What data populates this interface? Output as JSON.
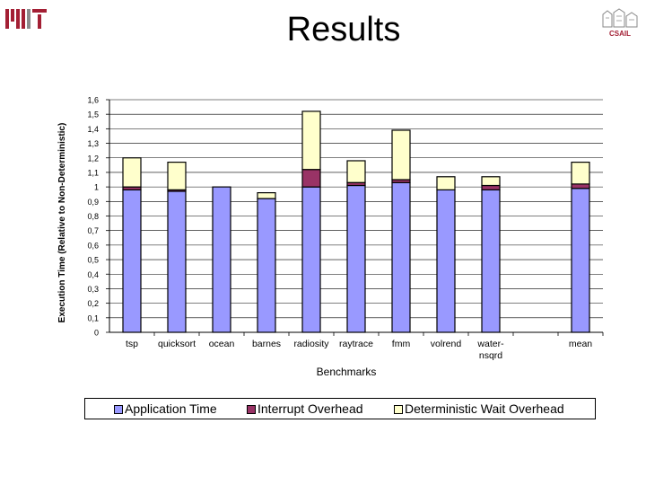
{
  "slide": {
    "title": "Results",
    "logo_left_text": "MIT",
    "logo_right_text": "CSAIL"
  },
  "chart_data": {
    "type": "bar",
    "stacked": true,
    "title": "",
    "xlabel": "Benchmarks",
    "ylabel": "Execution Time (Relative to Non-Deterministic)",
    "ylim": [
      0,
      1.6
    ],
    "ytick_step": 0.1,
    "grid": true,
    "legend_position": "bottom",
    "categories": [
      [
        "tsp"
      ],
      [
        "quicksort"
      ],
      [
        "ocean"
      ],
      [
        "barnes"
      ],
      [
        "radiosity"
      ],
      [
        "raytrace"
      ],
      [
        "fmm"
      ],
      [
        "volrend"
      ],
      [
        "water-",
        "nsqrd"
      ],
      [
        ""
      ],
      [
        "mean"
      ]
    ],
    "series": [
      {
        "name": "Application Time",
        "color": "#9999ff",
        "values": [
          0.98,
          0.97,
          1.0,
          0.92,
          1.0,
          1.01,
          1.03,
          0.98,
          0.98,
          null,
          0.99
        ]
      },
      {
        "name": "Interrupt Overhead",
        "color": "#993366",
        "values": [
          0.02,
          0.01,
          0.0,
          0.0,
          0.12,
          0.02,
          0.02,
          0.0,
          0.03,
          null,
          0.03
        ]
      },
      {
        "name": "Deterministic Wait Overhead",
        "color": "#ffffcc",
        "values": [
          0.2,
          0.19,
          0.0,
          0.04,
          0.4,
          0.15,
          0.34,
          0.09,
          0.06,
          null,
          0.15
        ]
      }
    ]
  }
}
